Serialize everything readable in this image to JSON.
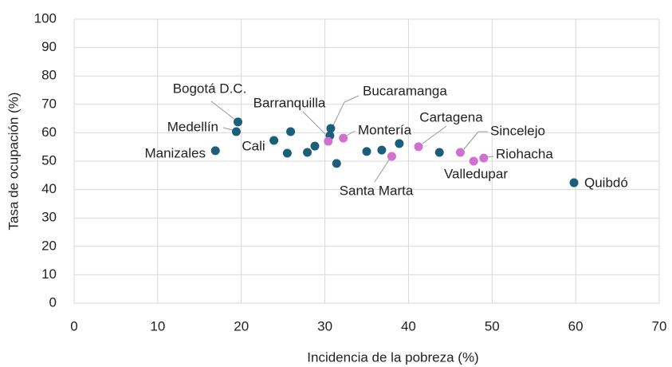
{
  "chart_data": {
    "type": "scatter",
    "xlabel": "Incidencia de la pobreza (%)",
    "ylabel": "Tasa de ocupación (%)",
    "xlim": [
      0,
      70
    ],
    "xticks": [
      0,
      10,
      20,
      30,
      40,
      50,
      60,
      70
    ],
    "ylim": [
      0,
      100
    ],
    "yticks": [
      0,
      10,
      20,
      30,
      40,
      50,
      60,
      70,
      80,
      90,
      100
    ],
    "grid": true,
    "series": [
      {
        "color": "#1b5e7b",
        "x": [
          16.9,
          19.4,
          19.6,
          23.9,
          25.9,
          25.5,
          27.9,
          28.8,
          30.6,
          30.7,
          31.4,
          35.0,
          36.8,
          38.9,
          43.7,
          59.8
        ],
        "values": [
          53.7,
          60.4,
          63.8,
          57.3,
          60.4,
          52.8,
          53.1,
          55.3,
          59.0,
          61.5,
          49.2,
          53.4,
          53.9,
          56.2,
          53.1,
          42.4
        ],
        "labels": [
          "Manizales",
          "Medellín",
          "Bogotá D.C.",
          "Cali",
          null,
          null,
          null,
          null,
          "Barranquilla",
          "Bucaramanga",
          null,
          null,
          null,
          null,
          null,
          "Quibdó"
        ]
      },
      {
        "color": "#d070d0",
        "x": [
          30.4,
          32.2,
          38.0,
          41.2,
          46.2,
          47.8,
          49.0
        ],
        "values": [
          57.0,
          58.1,
          51.7,
          55.1,
          53.1,
          50.0,
          51.1
        ],
        "labels": [
          null,
          "Montería",
          "Santa Marta",
          "Cartagena",
          "Sincelejo",
          "Valledupar",
          "Riohacha"
        ]
      }
    ]
  }
}
